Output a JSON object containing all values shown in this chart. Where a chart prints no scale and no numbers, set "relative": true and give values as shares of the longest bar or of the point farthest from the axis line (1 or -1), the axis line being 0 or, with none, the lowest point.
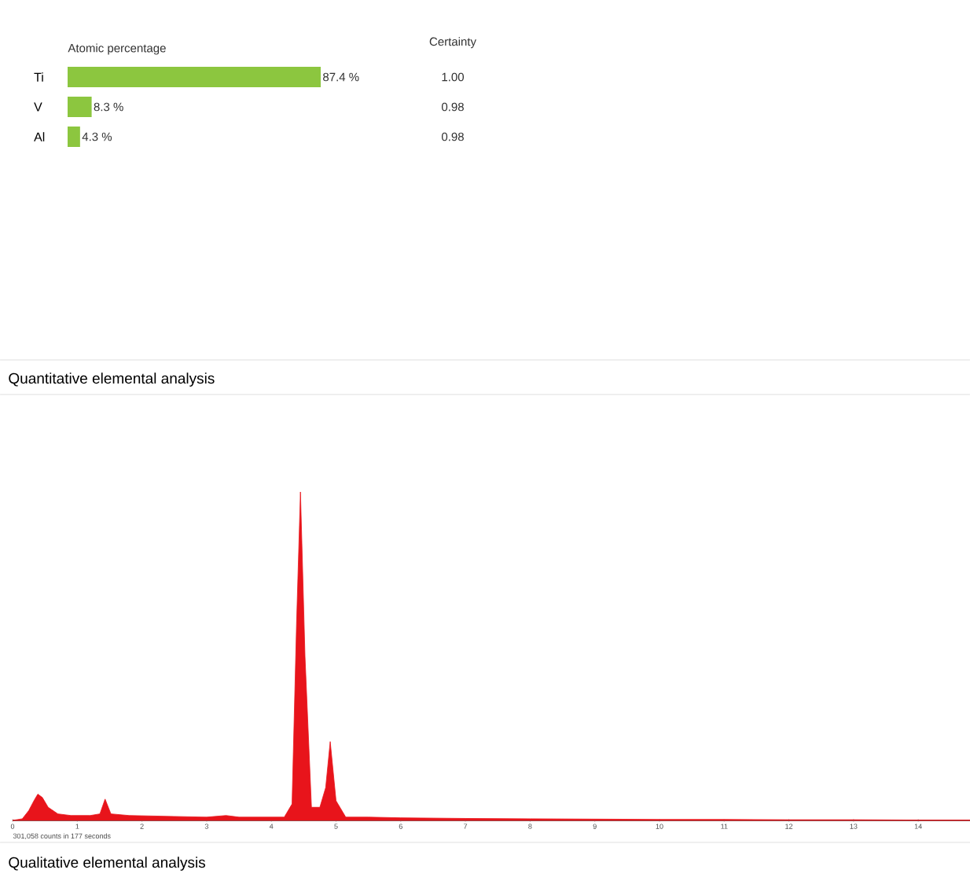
{
  "chart_data": [
    {
      "type": "bar",
      "orientation": "horizontal",
      "title": "Quantitative elemental analysis",
      "xlabel": "Atomic percentage",
      "categories": [
        "Ti",
        "V",
        "Al"
      ],
      "values": [
        87.4,
        8.3,
        4.3
      ],
      "value_labels": [
        "87.4 %",
        "8.3 %",
        "4.3 %"
      ],
      "color": "#8cc63f",
      "tick_labels": "y",
      "annotations": [
        "Certainty",
        "1.00",
        "0.98",
        "0.98"
      ]
    },
    {
      "type": "area",
      "title": "Qualitative elemental analysis",
      "relative": true,
      "color": "#e8141b",
      "xlim": [
        0,
        14.8
      ],
      "xticks": [
        0,
        1,
        2,
        3,
        4,
        5,
        6,
        7,
        8,
        9,
        10,
        11,
        12,
        13,
        14
      ],
      "tick_labels": "x",
      "annotations": [
        "301,058 counts in 177 seconds"
      ],
      "x": [
        0.0,
        0.15,
        0.25,
        0.33,
        0.39,
        0.46,
        0.55,
        0.7,
        0.9,
        1.2,
        1.35,
        1.43,
        1.52,
        1.8,
        2.5,
        3.0,
        3.3,
        3.5,
        4.2,
        4.32,
        4.39,
        4.45,
        4.52,
        4.62,
        4.75,
        4.84,
        4.91,
        5.0,
        5.15,
        5.5,
        6.0,
        7.0,
        8.0,
        9.0,
        10.0,
        11.0,
        12.0,
        13.0,
        14.0,
        14.8
      ],
      "values": [
        0,
        0.005,
        0.03,
        0.06,
        0.08,
        0.07,
        0.04,
        0.02,
        0.015,
        0.015,
        0.02,
        0.065,
        0.02,
        0.015,
        0.012,
        0.01,
        0.015,
        0.01,
        0.01,
        0.05,
        0.6,
        1.0,
        0.5,
        0.04,
        0.04,
        0.1,
        0.24,
        0.06,
        0.01,
        0.01,
        0.008,
        0.006,
        0.005,
        0.004,
        0.003,
        0.003,
        0.002,
        0.002,
        0.001,
        0.001
      ]
    }
  ]
}
